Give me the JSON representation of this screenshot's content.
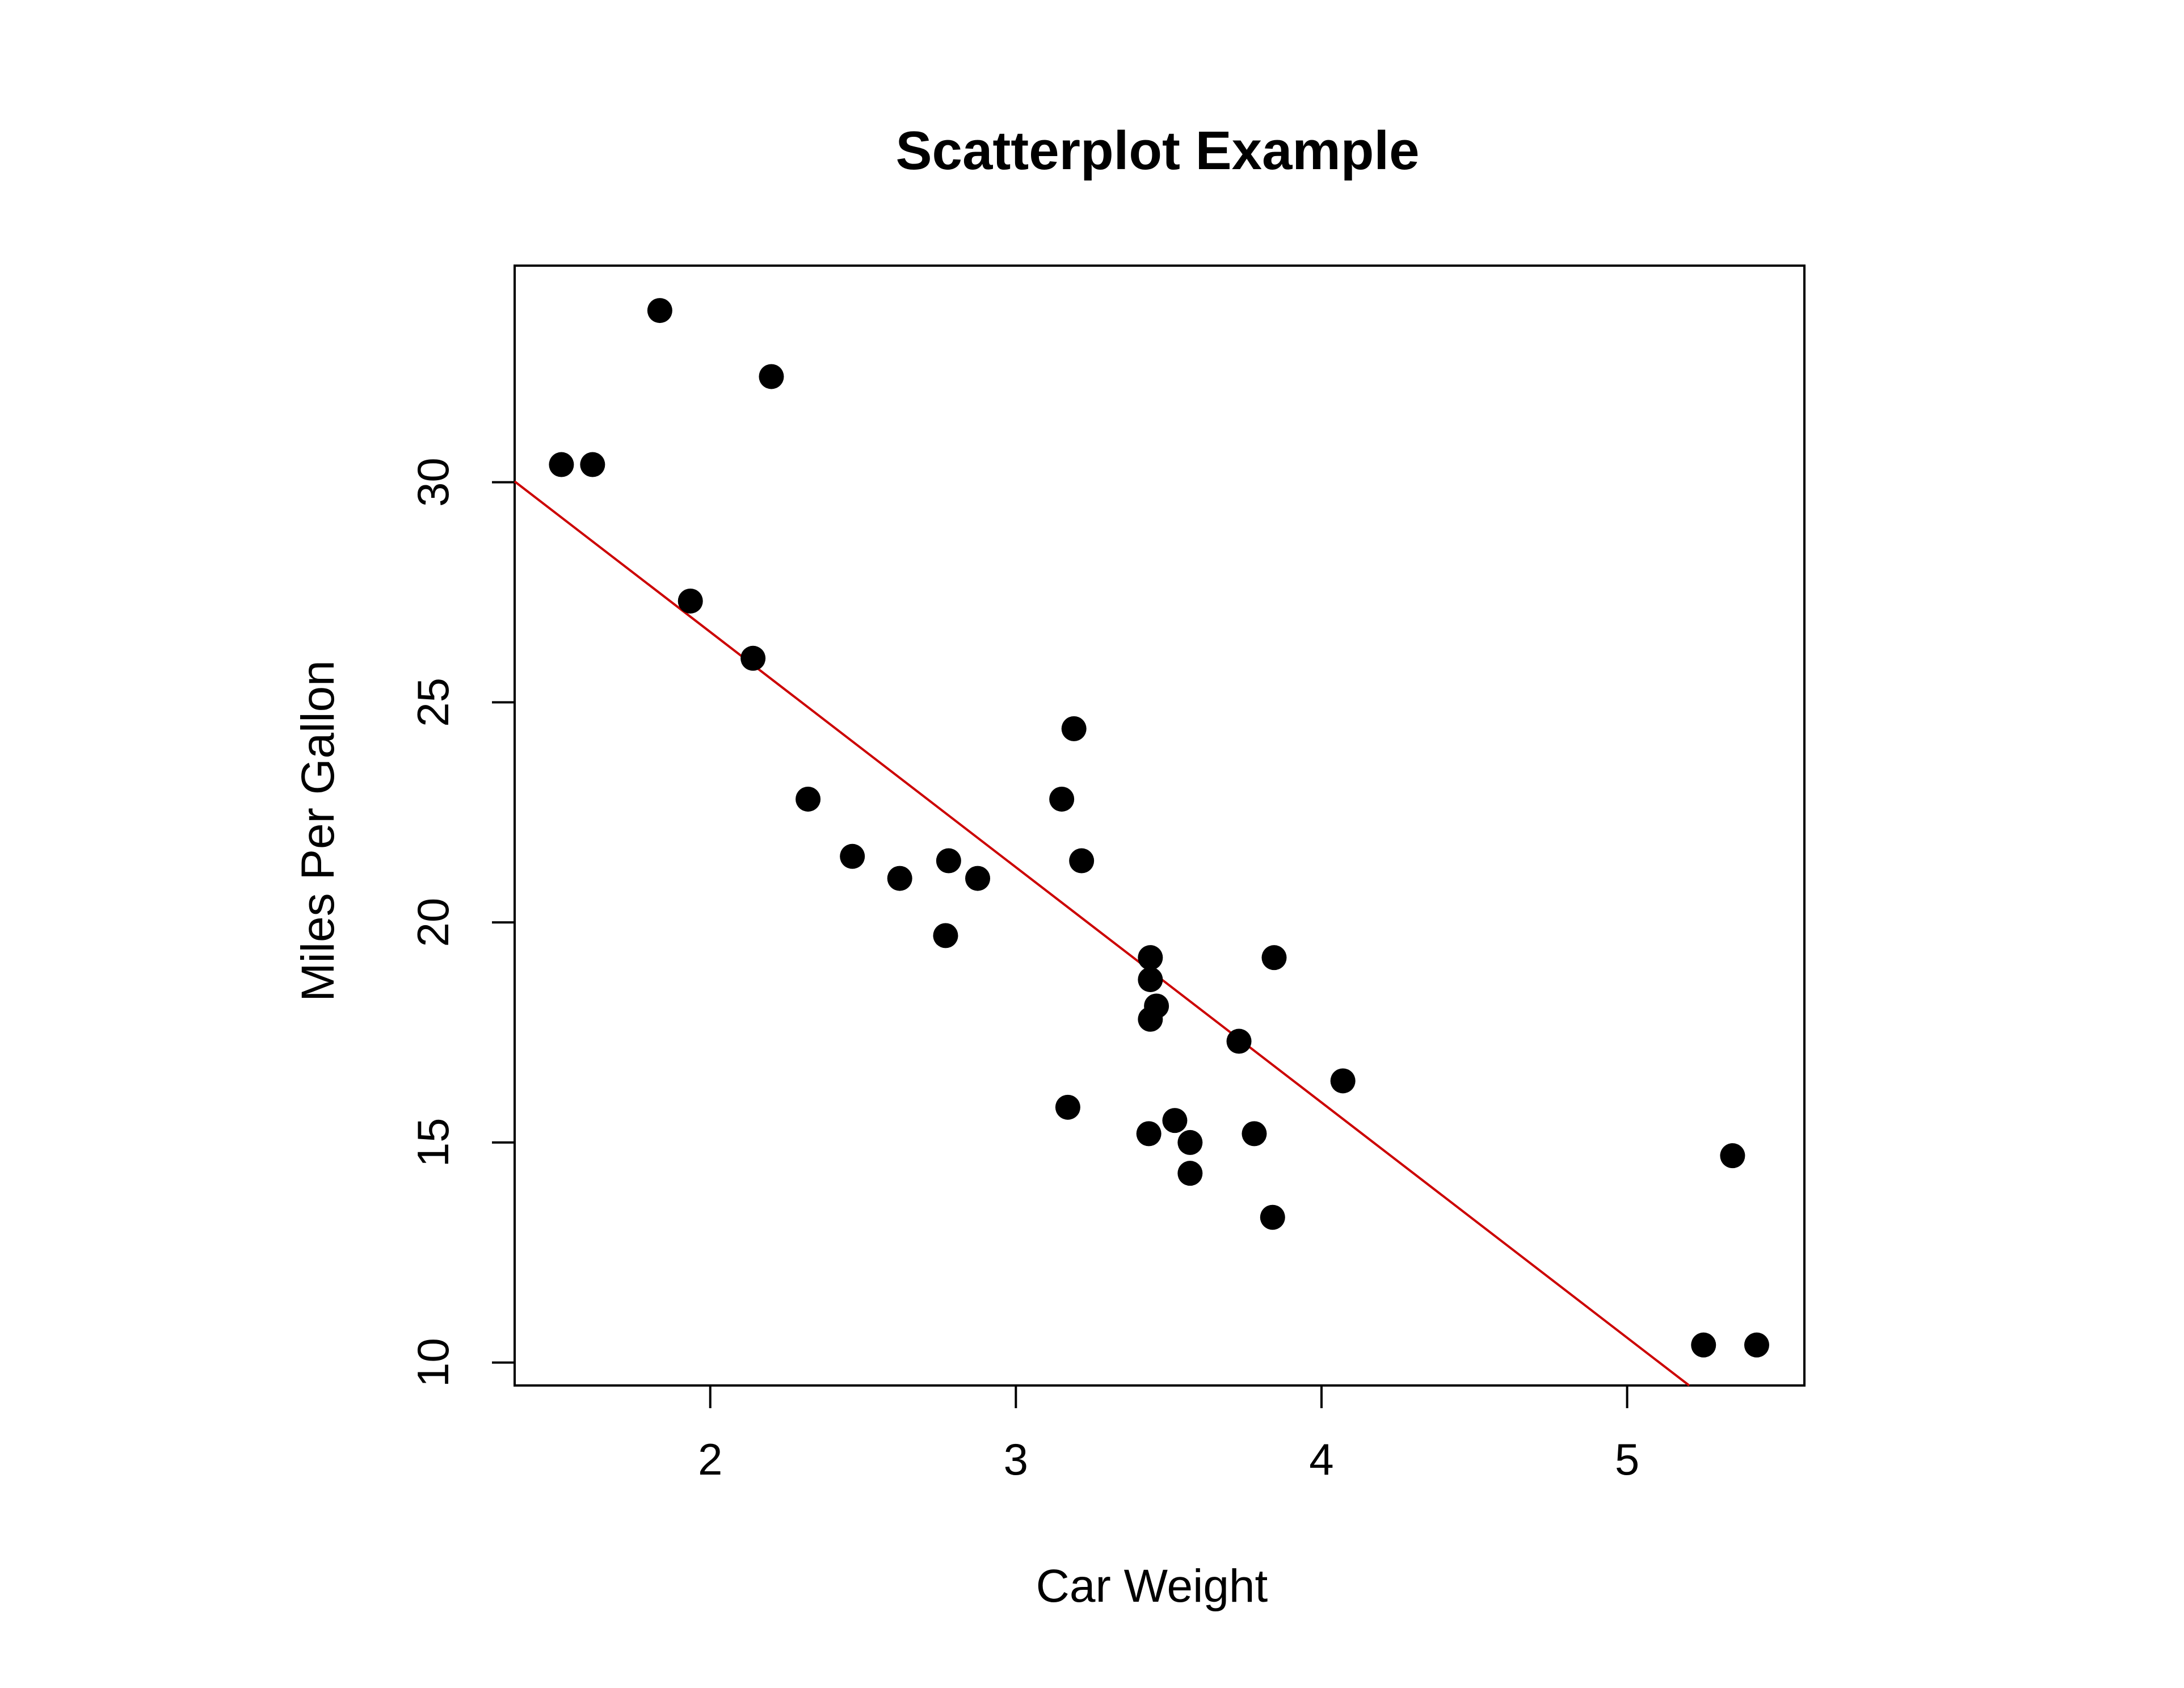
{
  "chart_data": {
    "type": "scatter",
    "title": "Scatterplot Example",
    "xlabel": "Car Weight",
    "ylabel": "Miles Per Gallon",
    "xlim": [
      1.36,
      5.58
    ],
    "ylim": [
      9.48,
      34.92
    ],
    "xticks": [
      2,
      3,
      4,
      5
    ],
    "yticks": [
      10,
      15,
      20,
      25,
      30
    ],
    "grid": false,
    "point_color": "#000000",
    "fit_line": {
      "intercept": 37.285,
      "slope": -5.344,
      "color": "#cc0000"
    },
    "points": [
      [
        1.513,
        30.4
      ],
      [
        1.615,
        30.4
      ],
      [
        1.835,
        33.9
      ],
      [
        1.935,
        27.3
      ],
      [
        2.14,
        26.0
      ],
      [
        2.2,
        32.4
      ],
      [
        2.32,
        22.8
      ],
      [
        2.465,
        21.5
      ],
      [
        2.62,
        21.0
      ],
      [
        2.77,
        19.7
      ],
      [
        2.78,
        21.4
      ],
      [
        2.875,
        21.0
      ],
      [
        3.15,
        22.8
      ],
      [
        3.17,
        15.8
      ],
      [
        3.19,
        24.4
      ],
      [
        3.215,
        21.4
      ],
      [
        3.435,
        15.2
      ],
      [
        3.44,
        18.7
      ],
      [
        3.44,
        19.2
      ],
      [
        3.44,
        17.8
      ],
      [
        3.46,
        18.1
      ],
      [
        3.52,
        15.5
      ],
      [
        3.57,
        15.0
      ],
      [
        3.57,
        14.3
      ],
      [
        3.73,
        17.3
      ],
      [
        3.78,
        15.2
      ],
      [
        3.84,
        13.3
      ],
      [
        3.845,
        19.2
      ],
      [
        4.07,
        16.4
      ],
      [
        5.25,
        10.4
      ],
      [
        5.345,
        14.7
      ],
      [
        5.424,
        10.4
      ]
    ]
  }
}
